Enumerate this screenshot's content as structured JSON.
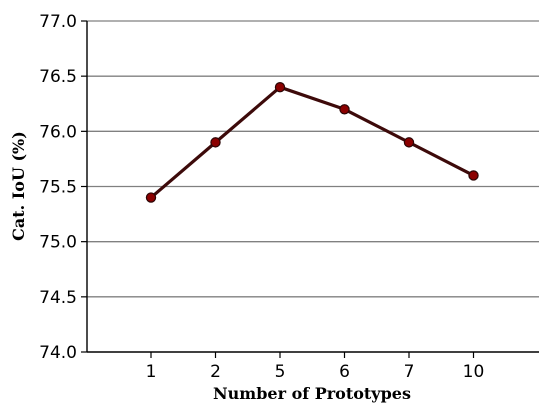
{
  "chart_data": {
    "type": "line",
    "title": "",
    "xlabel": "Number of Prototypes",
    "ylabel": "Cat. IoU (%)",
    "categories": [
      "1",
      "2",
      "5",
      "6",
      "7",
      "10"
    ],
    "series": [
      {
        "values": [
          75.4,
          75.9,
          76.4,
          76.2,
          75.9,
          75.6
        ],
        "line_color": "#3d0a0a",
        "marker_color": "#8b0000"
      }
    ],
    "ylim": [
      74.0,
      77.0
    ],
    "yticks": [
      74.0,
      74.5,
      75.0,
      75.5,
      76.0,
      76.5,
      77.0
    ],
    "ytick_labels": [
      "74.0",
      "74.5",
      "75.0",
      "75.5",
      "76.0",
      "76.5",
      "77.0"
    ],
    "grid": "horizontal",
    "legend": "none"
  }
}
